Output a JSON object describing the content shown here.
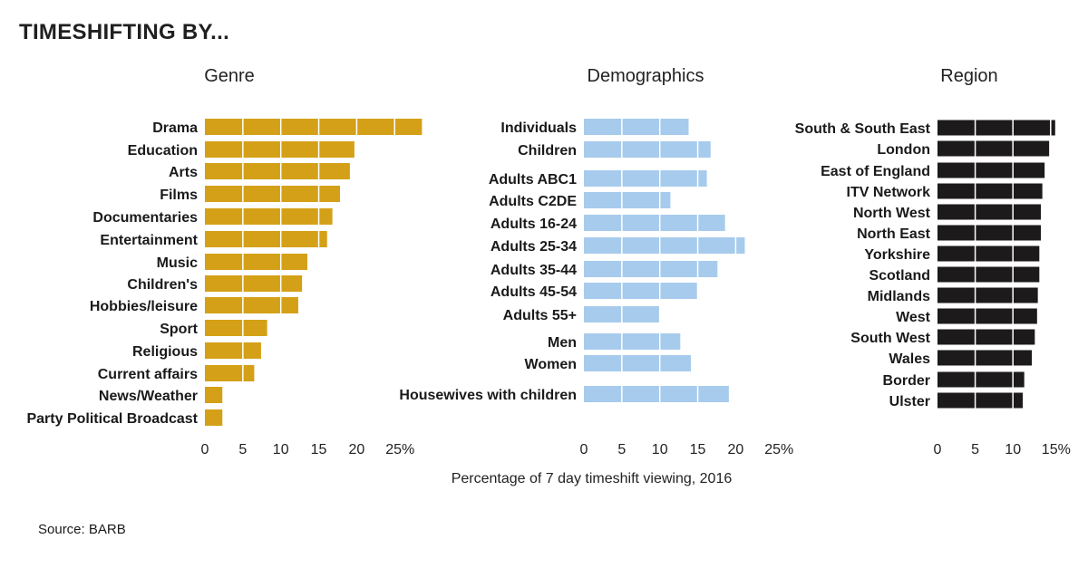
{
  "title": "TIMESHIFTING BY...",
  "source": "Source: BARB",
  "chart_data": [
    {
      "type": "bar",
      "orientation": "horizontal",
      "title": "Genre",
      "color": "#d4a017",
      "xlabel": "Percentage of 7 day timeshift viewing, 2016",
      "xlim": [
        0,
        25
      ],
      "ticks": [
        0,
        5,
        10,
        15,
        20,
        25
      ],
      "tick_labels": [
        "0",
        "5",
        "10",
        "15",
        "20",
        "25%"
      ],
      "grid": true,
      "categories": [
        "Drama",
        "Education",
        "Arts",
        "Films",
        "Documentaries",
        "Entertainment",
        "Music",
        "Children's",
        "Hobbies/leisure",
        "Sport",
        "Religious",
        "Current affairs",
        "News/Weather",
        "Party Political Broadcast"
      ],
      "values": [
        28.6,
        19.7,
        19.1,
        17.8,
        16.8,
        16.1,
        13.5,
        12.8,
        12.3,
        8.2,
        7.4,
        6.5,
        2.3,
        2.3
      ]
    },
    {
      "type": "bar",
      "orientation": "horizontal",
      "title": "Demographics",
      "color": "#a7cbec",
      "xlabel": "Percentage of 7 day timeshift viewing, 2016",
      "xlim": [
        0,
        25
      ],
      "ticks": [
        0,
        5,
        10,
        15,
        20,
        25
      ],
      "tick_labels": [
        "0",
        "5",
        "10",
        "15",
        "20",
        "25%"
      ],
      "grid": true,
      "categories": [
        "Individuals",
        "Children",
        "Adults ABC1",
        "Adults C2DE",
        "Adults 16-24",
        "Adults 25-34",
        "Adults 35-44",
        "Adults 45-54",
        "Adults 55+",
        "Men",
        "Women",
        "Housewives with children"
      ],
      "values": [
        13.8,
        16.7,
        16.2,
        11.4,
        18.6,
        21.2,
        17.6,
        14.9,
        9.9,
        12.7,
        14.1,
        19.1
      ]
    },
    {
      "type": "bar",
      "orientation": "horizontal",
      "title": "Region",
      "color": "#1c1a1b",
      "xlabel": "Percentage of 7 day timeshift viewing, 2016",
      "xlim": [
        0,
        15
      ],
      "ticks": [
        0,
        5,
        10,
        15
      ],
      "tick_labels": [
        "0",
        "5",
        "10",
        "15%"
      ],
      "grid": true,
      "categories": [
        "South & South East",
        "London",
        "East of England",
        "ITV Network",
        "North West",
        "North East",
        "Yorkshire",
        "Scotland",
        "Midlands",
        "West",
        "South West",
        "Wales",
        "Border",
        "Ulster"
      ],
      "values": [
        15.6,
        14.8,
        14.2,
        13.9,
        13.7,
        13.7,
        13.5,
        13.5,
        13.3,
        13.2,
        12.9,
        12.5,
        11.5,
        11.3
      ]
    }
  ]
}
